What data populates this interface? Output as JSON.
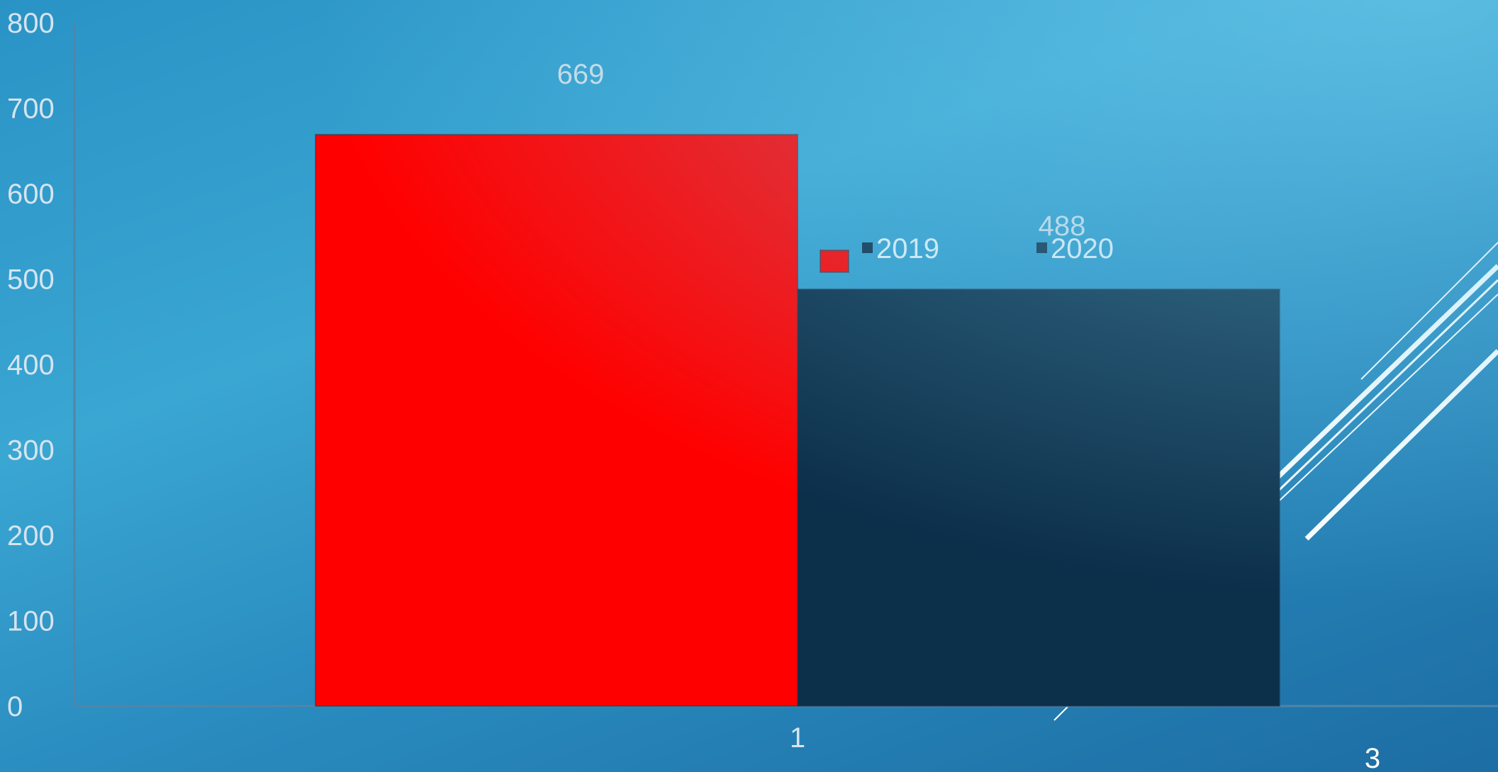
{
  "slide": {
    "page_number": "3"
  },
  "chart_data": {
    "type": "bar",
    "categories": [
      "1"
    ],
    "series": [
      {
        "name": "2019",
        "values": [
          669
        ],
        "color": "#ff0000"
      },
      {
        "name": "2020",
        "values": [
          488
        ],
        "color": "#0c2f4a"
      }
    ],
    "data_labels": [
      "669",
      "488"
    ],
    "ylim": [
      0,
      800
    ],
    "yticks": [
      0,
      100,
      200,
      300,
      400,
      500,
      600,
      700,
      800
    ],
    "title": "",
    "xlabel": "",
    "ylabel": "",
    "grid": false,
    "legend_position": "center"
  }
}
